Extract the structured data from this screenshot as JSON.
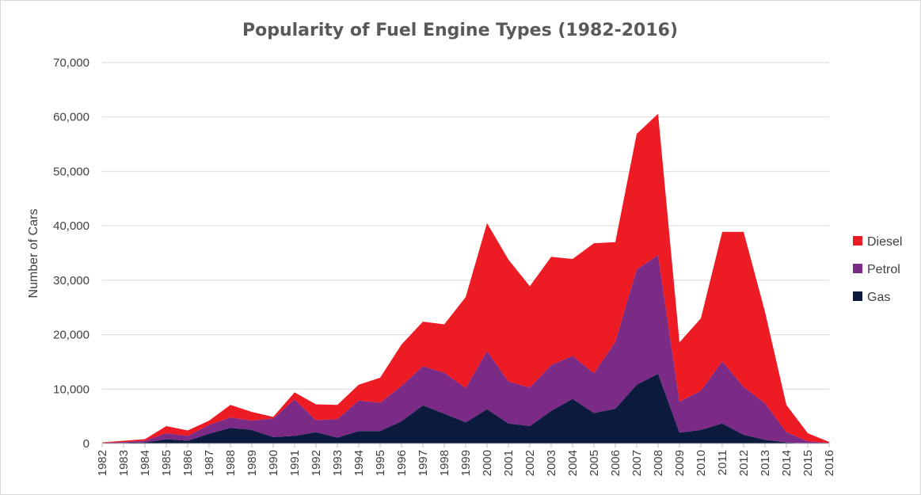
{
  "chart_data": {
    "type": "area",
    "stacked": true,
    "title": "Popularity of Fuel Engine Types (1982-2016)",
    "xlabel": "",
    "ylabel": "Number of Cars",
    "ylim": [
      0,
      70000
    ],
    "yticks": [
      "0",
      "10,000",
      "20,000",
      "30,000",
      "40,000",
      "50,000",
      "60,000",
      "70,000"
    ],
    "grid": true,
    "legend_position": "right",
    "categories": [
      "1982",
      "1983",
      "1984",
      "1985",
      "1986",
      "1987",
      "1988",
      "1989",
      "1990",
      "1991",
      "1992",
      "1993",
      "1994",
      "1995",
      "1996",
      "1997",
      "1998",
      "1999",
      "2000",
      "2001",
      "2002",
      "2003",
      "2004",
      "2005",
      "2006",
      "2007",
      "2008",
      "2009",
      "2010",
      "2011",
      "2012",
      "2013",
      "2014",
      "2015",
      "2016"
    ],
    "series": [
      {
        "name": "Gas",
        "color": "#0c1a3d",
        "values": [
          0,
          100,
          200,
          800,
          500,
          1800,
          2900,
          2500,
          1200,
          1400,
          2100,
          1100,
          2300,
          2300,
          4100,
          7000,
          5500,
          3900,
          6300,
          3700,
          3200,
          6000,
          8200,
          5600,
          6400,
          10800,
          12800,
          2000,
          2500,
          3700,
          1600,
          700,
          200,
          0,
          0
        ]
      },
      {
        "name": "Petrol",
        "color": "#7b2a86",
        "values": [
          100,
          200,
          300,
          1100,
          900,
          1600,
          1900,
          1700,
          3400,
          6700,
          2200,
          3400,
          5600,
          5200,
          6500,
          7200,
          7500,
          6300,
          10700,
          7700,
          7100,
          8400,
          7900,
          7300,
          12300,
          21200,
          21800,
          5700,
          7200,
          11400,
          8800,
          6700,
          1900,
          400,
          100
        ]
      },
      {
        "name": "Diesel",
        "color": "#ed1c24",
        "values": [
          100,
          200,
          300,
          1300,
          1000,
          800,
          2300,
          1600,
          300,
          1300,
          2900,
          2600,
          2900,
          4600,
          7600,
          8200,
          8900,
          16700,
          23500,
          22400,
          18600,
          19900,
          17800,
          23900,
          18300,
          24900,
          26000,
          10900,
          13300,
          23800,
          28500,
          16800,
          5000,
          1500,
          200
        ]
      }
    ]
  }
}
